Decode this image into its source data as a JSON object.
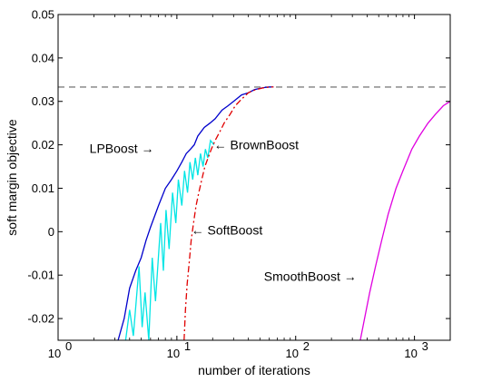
{
  "chart_data": {
    "type": "line",
    "xlabel": "number of iterations",
    "ylabel": "soft margin objective",
    "xscale": "log",
    "xlim": [
      1,
      2000
    ],
    "ylim": [
      -0.025,
      0.05
    ],
    "grid": false,
    "x_ticks": [
      {
        "value": 1,
        "base": "10",
        "exp": "0"
      },
      {
        "value": 10,
        "base": "10",
        "exp": "1"
      },
      {
        "value": 100,
        "base": "10",
        "exp": "2"
      },
      {
        "value": 1000,
        "base": "10",
        "exp": "3"
      }
    ],
    "y_ticks": [
      {
        "value": -0.02,
        "label": "-0.02"
      },
      {
        "value": -0.01,
        "label": "-0.01"
      },
      {
        "value": 0,
        "label": "0"
      },
      {
        "value": 0.01,
        "label": "0.01"
      },
      {
        "value": 0.02,
        "label": "0.02"
      },
      {
        "value": 0.03,
        "label": "0.03"
      },
      {
        "value": 0.04,
        "label": "0.04"
      },
      {
        "value": 0.05,
        "label": "0.05"
      }
    ],
    "reference_line": {
      "y": 0.0333,
      "color": "#808080",
      "style": "dashed"
    },
    "series": [
      {
        "name": "LPBoost",
        "color": "#0000cc",
        "style": "solid",
        "x": [
          3.2,
          3.6,
          4.0,
          4.5,
          5.0,
          5.5,
          6.0,
          7.0,
          8.0,
          9.0,
          10,
          11,
          12,
          13,
          14,
          15,
          17,
          19,
          21,
          24,
          27,
          30,
          35,
          40,
          45,
          50,
          55,
          60,
          65
        ],
        "y": [
          -0.025,
          -0.02,
          -0.013,
          -0.009,
          -0.006,
          -0.002,
          0.001,
          0.006,
          0.01,
          0.012,
          0.014,
          0.016,
          0.018,
          0.019,
          0.02,
          0.022,
          0.024,
          0.025,
          0.026,
          0.028,
          0.029,
          0.03,
          0.0315,
          0.032,
          0.0327,
          0.033,
          0.0332,
          0.0333,
          0.0333
        ]
      },
      {
        "name": "BrownBoost",
        "color": "#00e5e5",
        "style": "solid",
        "x": [
          3.7,
          4.0,
          4.3,
          4.8,
          5.1,
          5.4,
          5.8,
          6.2,
          6.6,
          7.3,
          7.7,
          8.1,
          8.6,
          9.2,
          9.8,
          10.3,
          11.0,
          11.6,
          12.3,
          12.9,
          13.6,
          14.3,
          15.0,
          15.8,
          16.6,
          17.4,
          18.2,
          19.2,
          20.5
        ],
        "y": [
          -0.025,
          -0.018,
          -0.024,
          -0.008,
          -0.022,
          -0.014,
          -0.025,
          -0.006,
          -0.016,
          0.002,
          -0.009,
          0.005,
          -0.004,
          0.009,
          0.002,
          0.012,
          0.006,
          0.014,
          0.009,
          0.016,
          0.012,
          0.017,
          0.013,
          0.018,
          0.015,
          0.019,
          0.017,
          0.021,
          0.02
        ]
      },
      {
        "name": "SoftBoost",
        "color": "#e00000",
        "style": "dashdot",
        "x": [
          11.5,
          11.8,
          12.2,
          12.7,
          13.2,
          13.8,
          14.5,
          15.3,
          16.2,
          17.2,
          18.3,
          19.5,
          21,
          23,
          25,
          28,
          31,
          35,
          40,
          46,
          53,
          60,
          65
        ],
        "y": [
          -0.025,
          -0.018,
          -0.012,
          -0.007,
          -0.002,
          0.002,
          0.006,
          0.009,
          0.012,
          0.015,
          0.017,
          0.019,
          0.021,
          0.023,
          0.025,
          0.027,
          0.029,
          0.0305,
          0.032,
          0.0327,
          0.0331,
          0.0333,
          0.0333
        ]
      },
      {
        "name": "SmoothBoost",
        "color": "#e000e0",
        "style": "solid",
        "x": [
          350,
          380,
          420,
          470,
          530,
          600,
          700,
          800,
          950,
          1100,
          1300,
          1500,
          1750,
          2000
        ],
        "y": [
          -0.025,
          -0.02,
          -0.014,
          -0.008,
          -0.002,
          0.004,
          0.01,
          0.014,
          0.019,
          0.022,
          0.025,
          0.027,
          0.029,
          0.03
        ]
      }
    ],
    "annotations": [
      {
        "text": "LPBoost →",
        "x": 6.4,
        "y": 0.0192,
        "anchor": "end"
      },
      {
        "text": "← BrownBoost",
        "x": 20.5,
        "y": 0.02,
        "anchor": "start"
      },
      {
        "text": "← SoftBoost",
        "x": 13.2,
        "y": 0.0004,
        "anchor": "start"
      },
      {
        "text": "SmoothBoost →",
        "x": 325,
        "y": -0.0103,
        "anchor": "end"
      }
    ]
  }
}
